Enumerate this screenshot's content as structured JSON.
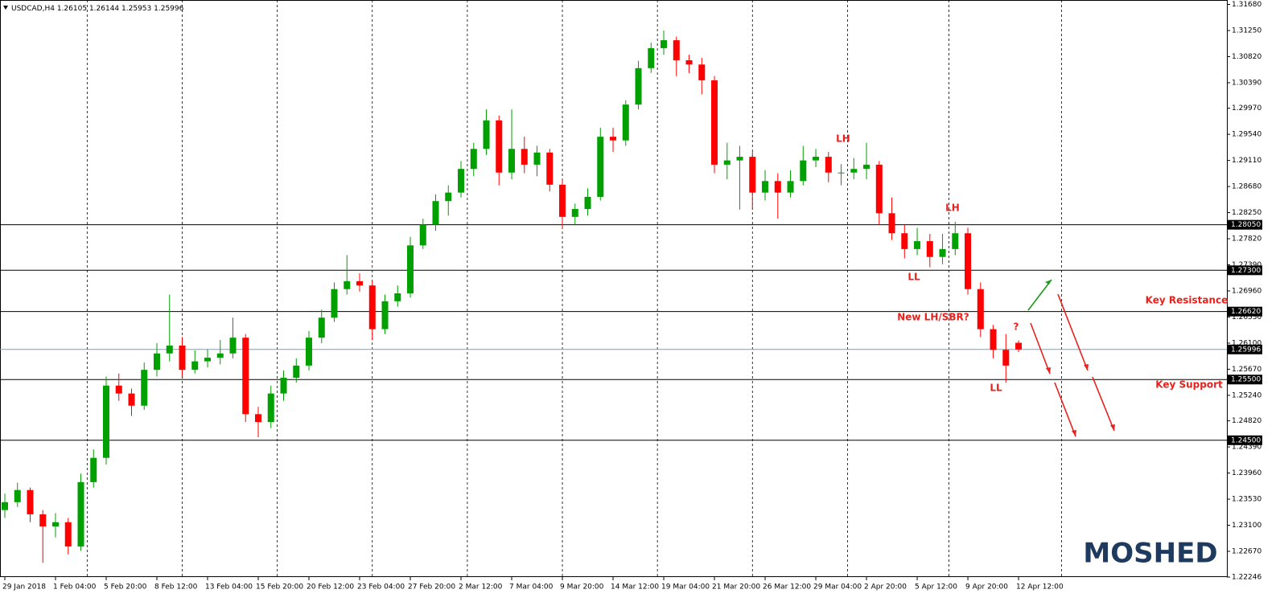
{
  "chart_data": {
    "type": "candlestick",
    "symbol": "USDCAD,H4",
    "candles": [
      [
        1.2335,
        1.2362,
        1.2322,
        1.2348
      ],
      [
        1.2348,
        1.238,
        1.234,
        1.2368
      ],
      [
        1.2368,
        1.2372,
        1.2315,
        1.2328
      ],
      [
        1.2328,
        1.2335,
        1.2248,
        1.2308
      ],
      [
        1.2308,
        1.233,
        1.229,
        1.2315
      ],
      [
        1.2315,
        1.2322,
        1.2262,
        1.2275
      ],
      [
        1.2275,
        1.2395,
        1.2268,
        1.2381
      ],
      [
        1.2381,
        1.2435,
        1.2372,
        1.2421
      ],
      [
        1.2421,
        1.2555,
        1.241,
        1.254
      ],
      [
        1.254,
        1.256,
        1.2515,
        1.2527
      ],
      [
        1.2527,
        1.2535,
        1.249,
        1.2507
      ],
      [
        1.2507,
        1.2578,
        1.25,
        1.2566
      ],
      [
        1.2566,
        1.261,
        1.2555,
        1.2593
      ],
      [
        1.2593,
        1.269,
        1.258,
        1.2606
      ],
      [
        1.2606,
        1.262,
        1.2555,
        1.2566
      ],
      [
        1.2566,
        1.2598,
        1.256,
        1.258
      ],
      [
        1.258,
        1.26,
        1.257,
        1.2586
      ],
      [
        1.2586,
        1.2615,
        1.2575,
        1.2593
      ],
      [
        1.2593,
        1.2652,
        1.2585,
        1.2619
      ],
      [
        1.2619,
        1.2625,
        1.248,
        1.2493
      ],
      [
        1.2493,
        1.2505,
        1.2455,
        1.248
      ],
      [
        1.248,
        1.254,
        1.247,
        1.2527
      ],
      [
        1.2527,
        1.2565,
        1.2515,
        1.2553
      ],
      [
        1.2553,
        1.2585,
        1.2545,
        1.2573
      ],
      [
        1.2573,
        1.263,
        1.2565,
        1.2619
      ],
      [
        1.2619,
        1.2665,
        1.261,
        1.2652
      ],
      [
        1.2652,
        1.271,
        1.2645,
        1.2699
      ],
      [
        1.2699,
        1.2755,
        1.269,
        1.2712
      ],
      [
        1.2712,
        1.2725,
        1.2695,
        1.2705
      ],
      [
        1.2705,
        1.2712,
        1.2615,
        1.2633
      ],
      [
        1.2633,
        1.269,
        1.2625,
        1.2679
      ],
      [
        1.2679,
        1.2705,
        1.267,
        1.2692
      ],
      [
        1.2692,
        1.2785,
        1.2685,
        1.2771
      ],
      [
        1.2771,
        1.2815,
        1.2765,
        1.2805
      ],
      [
        1.2805,
        1.2855,
        1.2795,
        1.2844
      ],
      [
        1.2844,
        1.287,
        1.282,
        1.2858
      ],
      [
        1.2858,
        1.291,
        1.285,
        1.2897
      ],
      [
        1.2897,
        1.294,
        1.2885,
        1.293
      ],
      [
        1.293,
        1.2995,
        1.292,
        1.2977
      ],
      [
        1.2977,
        1.2985,
        1.287,
        1.2891
      ],
      [
        1.2891,
        1.2995,
        1.288,
        1.293
      ],
      [
        1.293,
        1.295,
        1.289,
        1.2904
      ],
      [
        1.2904,
        1.2935,
        1.2885,
        1.2924
      ],
      [
        1.2924,
        1.293,
        1.286,
        1.2871
      ],
      [
        1.2871,
        1.288,
        1.28,
        1.2818
      ],
      [
        1.2818,
        1.284,
        1.2805,
        1.2831
      ],
      [
        1.2831,
        1.2865,
        1.282,
        1.2851
      ],
      [
        1.2851,
        1.2965,
        1.2845,
        1.295
      ],
      [
        1.295,
        1.2965,
        1.2925,
        1.2944
      ],
      [
        1.2944,
        1.301,
        1.2935,
        1.3003
      ],
      [
        1.3003,
        1.3075,
        1.2995,
        1.3063
      ],
      [
        1.3063,
        1.3105,
        1.3055,
        1.3096
      ],
      [
        1.3096,
        1.3125,
        1.3085,
        1.3109
      ],
      [
        1.3109,
        1.3115,
        1.305,
        1.3076
      ],
      [
        1.3076,
        1.3085,
        1.3055,
        1.3069
      ],
      [
        1.3069,
        1.308,
        1.302,
        1.3043
      ],
      [
        1.3043,
        1.305,
        1.289,
        1.2904
      ],
      [
        1.2904,
        1.294,
        1.288,
        1.2911
      ],
      [
        1.2911,
        1.2935,
        1.283,
        1.2917
      ],
      [
        1.2917,
        1.2925,
        1.283,
        1.2858
      ],
      [
        1.2858,
        1.2895,
        1.2845,
        1.2877
      ],
      [
        1.2877,
        1.289,
        1.2815,
        1.2858
      ],
      [
        1.2858,
        1.2895,
        1.285,
        1.2877
      ],
      [
        1.2877,
        1.2935,
        1.287,
        1.2911
      ],
      [
        1.2911,
        1.293,
        1.29,
        1.2917
      ],
      [
        1.2917,
        1.2925,
        1.2875,
        1.2891
      ],
      [
        1.2891,
        1.2905,
        1.287,
        1.2891
      ],
      [
        1.2891,
        1.2915,
        1.288,
        1.2897
      ],
      [
        1.2897,
        1.294,
        1.288,
        1.2904
      ],
      [
        1.2904,
        1.291,
        1.2805,
        1.2824
      ],
      [
        1.2824,
        1.285,
        1.278,
        1.2791
      ],
      [
        1.2791,
        1.2805,
        1.275,
        1.2765
      ],
      [
        1.2765,
        1.28,
        1.2755,
        1.2778
      ],
      [
        1.2778,
        1.279,
        1.2735,
        1.2752
      ],
      [
        1.2752,
        1.279,
        1.274,
        1.2765
      ],
      [
        1.2765,
        1.281,
        1.2755,
        1.2791
      ],
      [
        1.2791,
        1.28,
        1.269,
        1.2699
      ],
      [
        1.2699,
        1.271,
        1.262,
        1.2633
      ],
      [
        1.2633,
        1.264,
        1.2585,
        1.2599
      ],
      [
        1.2599,
        1.2625,
        1.2545,
        1.2573
      ],
      [
        1.26105,
        1.26144,
        1.25953,
        1.25996
      ]
    ],
    "up_color": "#00a000",
    "down_color": "#ff0000",
    "xlim": [
      -0.38,
      96.44
    ],
    "xticks": [
      {
        "value": 0,
        "label": "29 Jan 2018"
      },
      {
        "value": 4,
        "label": "1 Feb 04:00"
      },
      {
        "value": 8,
        "label": "5 Feb 20:00"
      },
      {
        "value": 12,
        "label": "8 Feb 12:00"
      },
      {
        "value": 16,
        "label": "13 Feb 04:00"
      },
      {
        "value": 20,
        "label": "15 Feb 20:00"
      },
      {
        "value": 24,
        "label": "20 Feb 12:00"
      },
      {
        "value": 28,
        "label": "23 Feb 04:00"
      },
      {
        "value": 32,
        "label": "27 Feb 20:00"
      },
      {
        "value": 36,
        "label": "2 Mar 12:00"
      },
      {
        "value": 40,
        "label": "7 Mar 04:00"
      },
      {
        "value": 44,
        "label": "9 Mar 20:00"
      },
      {
        "value": 48,
        "label": "14 Mar 12:00"
      },
      {
        "value": 52,
        "label": "19 Mar 04:00"
      },
      {
        "value": 56,
        "label": "21 Mar 20:00"
      },
      {
        "value": 60,
        "label": "26 Mar 12:00"
      },
      {
        "value": 64,
        "label": "29 Mar 04:00"
      },
      {
        "value": 68,
        "label": "2 Apr 20:00"
      },
      {
        "value": 72,
        "label": "5 Apr 12:00"
      },
      {
        "value": 76,
        "label": "9 Apr 20:00"
      },
      {
        "value": 80,
        "label": "12 Apr 12:00"
      }
    ],
    "xgrid": [
      6.5,
      14,
      21.5,
      29,
      36.5,
      44,
      51.5,
      59,
      66.5,
      74.5,
      83.4
    ],
    "ylim": [
      1.22246,
      1.31753
    ],
    "yticks": [
      {
        "value": 1.3168,
        "label": "1.31680"
      },
      {
        "value": 1.3125,
        "label": "1.31250"
      },
      {
        "value": 1.3082,
        "label": "1.30820"
      },
      {
        "value": 1.3039,
        "label": "1.30390"
      },
      {
        "value": 1.2997,
        "label": "1.29970"
      },
      {
        "value": 1.2954,
        "label": "1.29540"
      },
      {
        "value": 1.2911,
        "label": "1.29110"
      },
      {
        "value": 1.2868,
        "label": "1.28680"
      },
      {
        "value": 1.2825,
        "label": "1.28250"
      },
      {
        "value": 1.2782,
        "label": "1.27820"
      },
      {
        "value": 1.2739,
        "label": "1.27390"
      },
      {
        "value": 1.2696,
        "label": "1.26960"
      },
      {
        "value": 1.2653,
        "label": "1.26530"
      },
      {
        "value": 1.261,
        "label": "1.26100"
      },
      {
        "value": 1.2567,
        "label": "1.25670"
      },
      {
        "value": 1.2524,
        "label": "1.25240"
      },
      {
        "value": 1.2482,
        "label": "1.24820"
      },
      {
        "value": 1.2439,
        "label": "1.24390"
      },
      {
        "value": 1.2396,
        "label": "1.23960"
      },
      {
        "value": 1.2353,
        "label": "1.23530"
      },
      {
        "value": 1.231,
        "label": "1.23100"
      },
      {
        "value": 1.2267,
        "label": "1.22670"
      },
      {
        "value": 1.22246,
        "label": "1.22246"
      }
    ],
    "levels": [
      {
        "value": 1.2805,
        "label": "1.28050"
      },
      {
        "value": 1.273,
        "label": "1.27300"
      },
      {
        "value": 1.2662,
        "label": "1.26620"
      },
      {
        "value": 1.255,
        "label": "1.25500"
      },
      {
        "value": 1.245,
        "label": "1.24500"
      }
    ],
    "price_line": {
      "value": 1.25996,
      "label": "1.25996"
    },
    "annotations": [
      "LH",
      "LH",
      "LL",
      "New LH/SBR?",
      "?",
      "LL",
      "Key Resistance",
      "Key Support"
    ],
    "watermark": "MOSHED"
  }
}
